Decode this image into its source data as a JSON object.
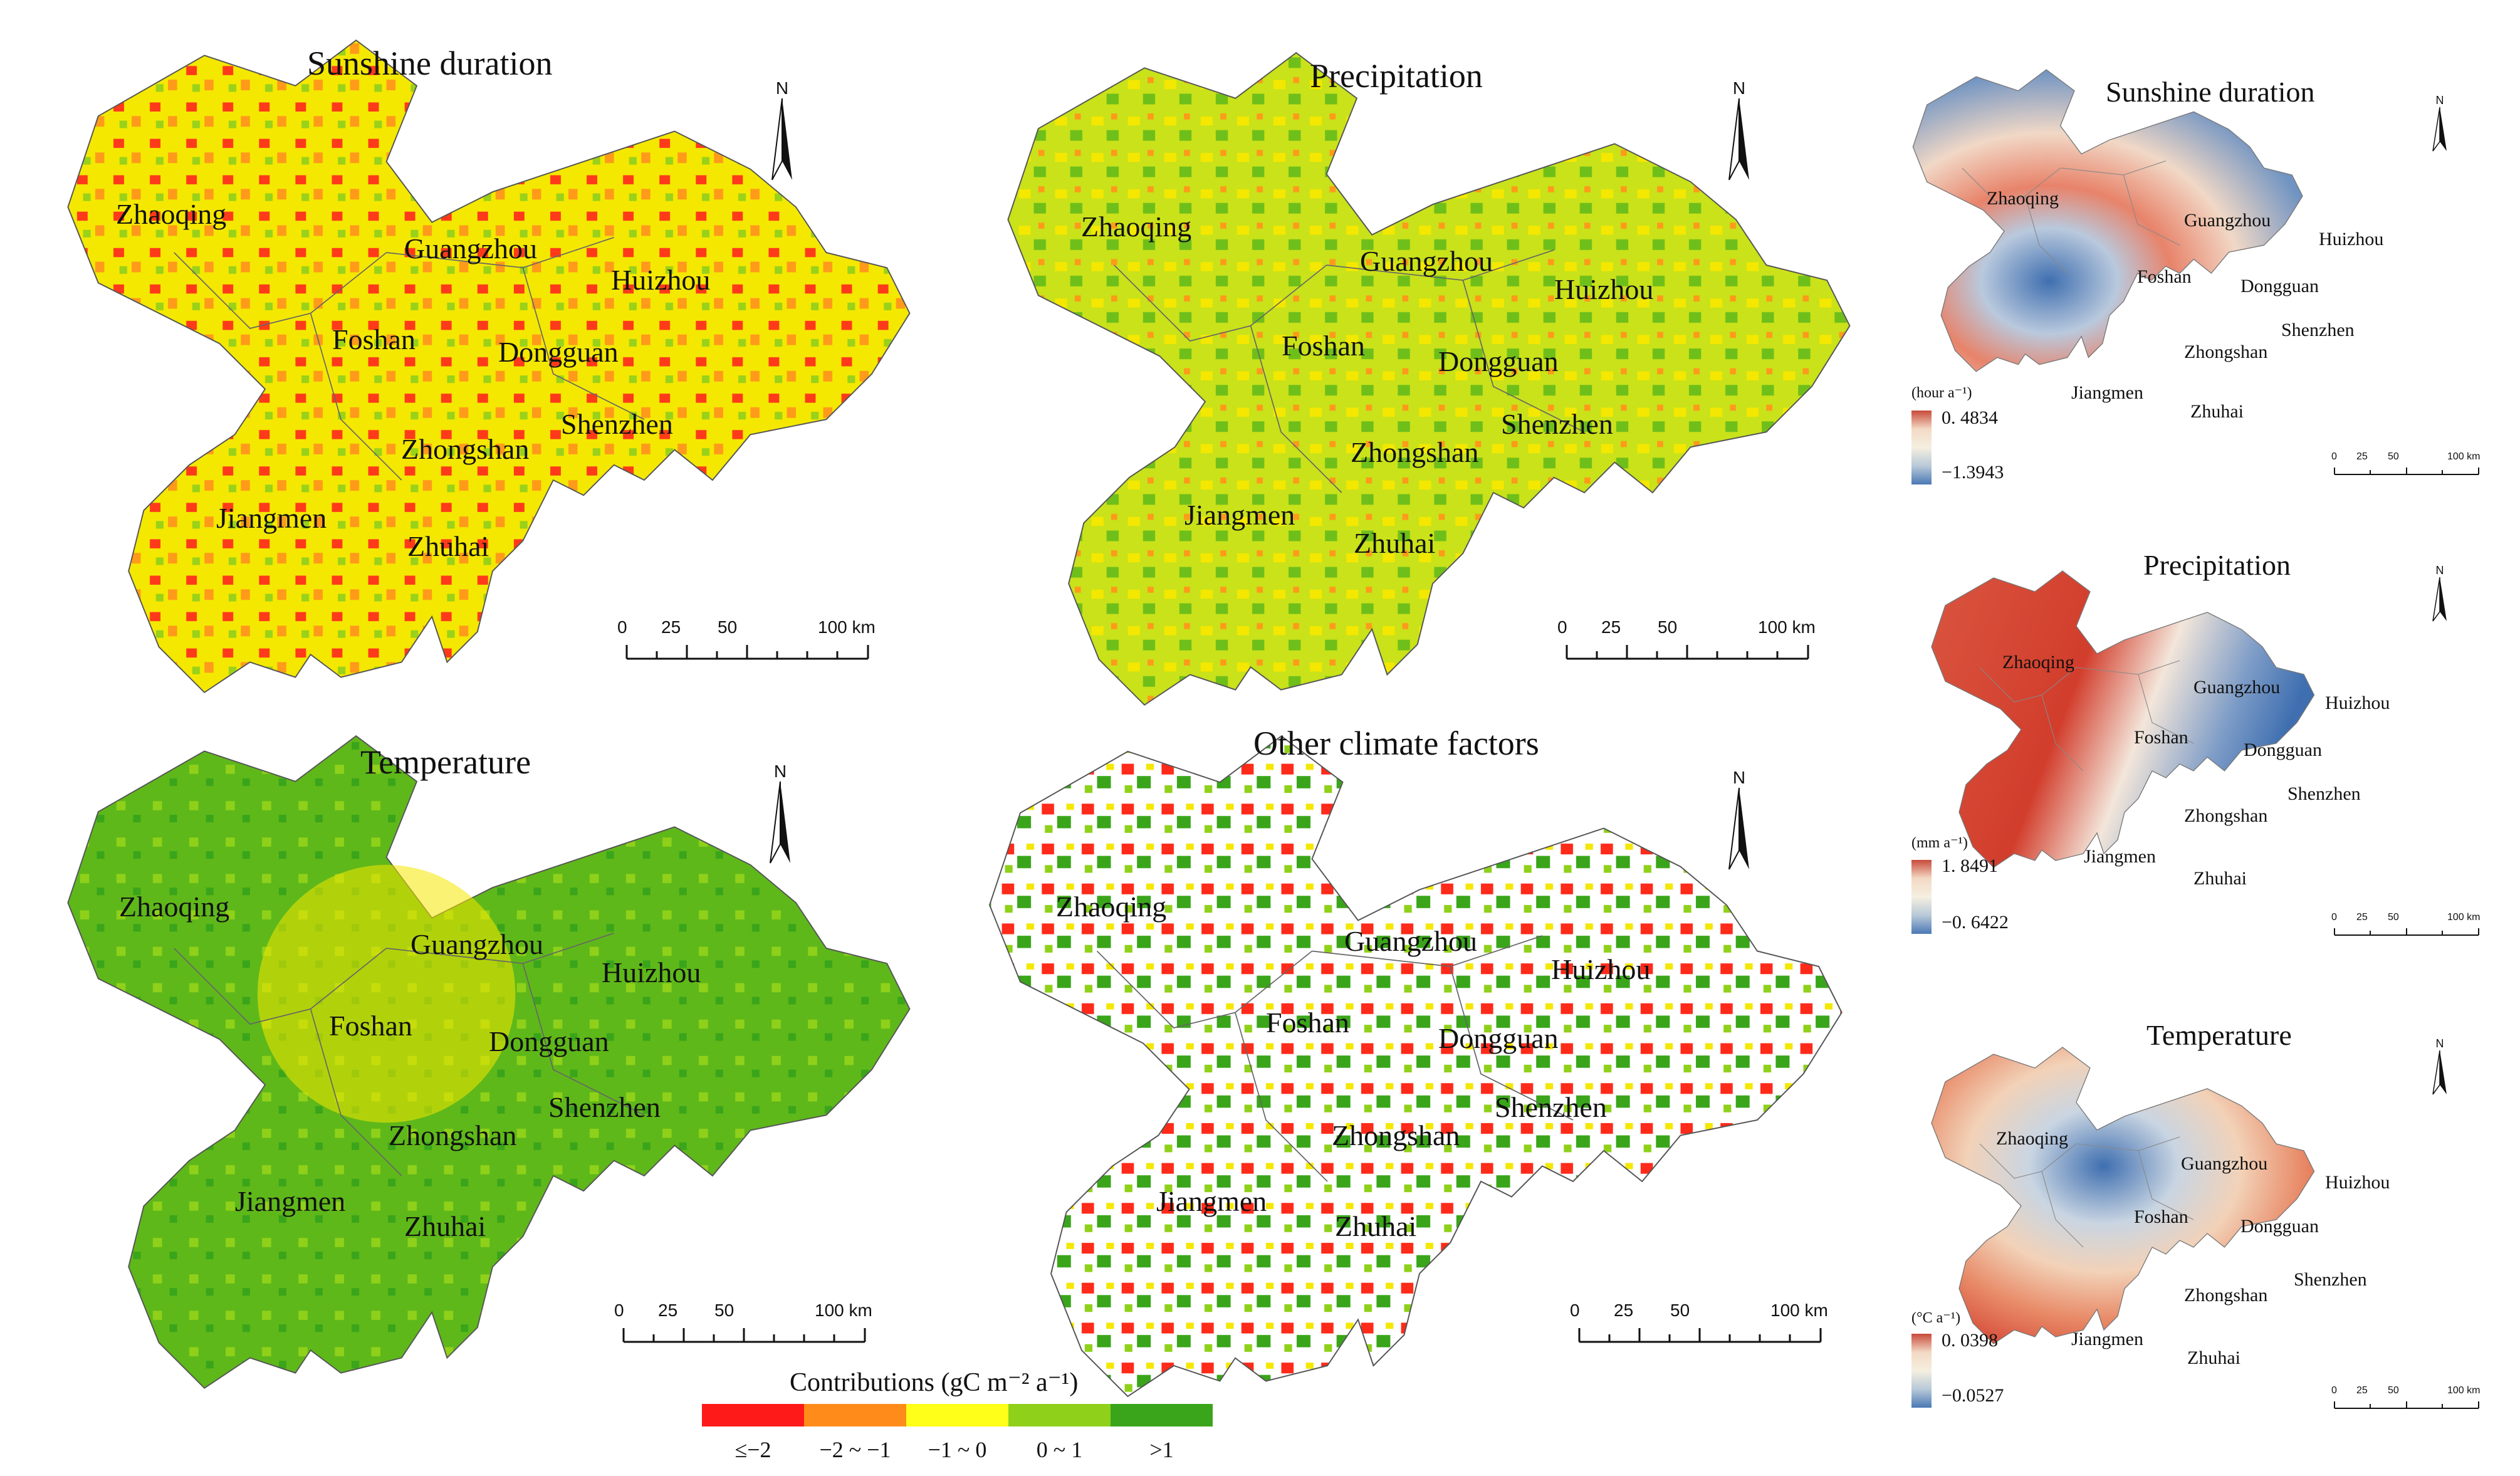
{
  "panels": {
    "sunshine": {
      "title": "Sunshine duration"
    },
    "precip": {
      "title": "Precipitation"
    },
    "temp": {
      "title": "Temperature"
    },
    "other": {
      "title": "Other climate factors"
    }
  },
  "right_panels": {
    "sunshine": {
      "title": "Sunshine duration",
      "unit": "(hour a⁻¹)",
      "max": "0. 4834",
      "min": "−1.3943"
    },
    "precip": {
      "title": "Precipitation",
      "unit": "(mm a⁻¹)",
      "max": "1. 8491",
      "min": "−0. 6422"
    },
    "temp": {
      "title": "Temperature",
      "unit": "(°C a⁻¹)",
      "max": "0. 0398",
      "min": "−0.0527"
    }
  },
  "cities": {
    "zhaoqing": "Zhaoqing",
    "guangzhou": "Guangzhou",
    "huizhou": "Huizhou",
    "foshan": "Foshan",
    "dongguan": "Dongguan",
    "shenzhen": "Shenzhen",
    "zhongshan": "Zhongshan",
    "jiangmen": "Jiangmen",
    "zhuhai": "Zhuhai"
  },
  "north_label": "N",
  "scale_bar": {
    "labels": [
      "0",
      "25",
      "50",
      "100 km"
    ]
  },
  "legend": {
    "title": "Contributions (gC m⁻² a⁻¹)",
    "classes": [
      {
        "label": "≤−2",
        "color": "#ff1a1a"
      },
      {
        "label": "−2 ~ −1",
        "color": "#ff8c1a"
      },
      {
        "label": "−1 ~ 0",
        "color": "#ffff1a"
      },
      {
        "label": "0 ~ 1",
        "color": "#8fd11a"
      },
      {
        "label": ">1",
        "color": "#3aa51a"
      }
    ]
  }
}
